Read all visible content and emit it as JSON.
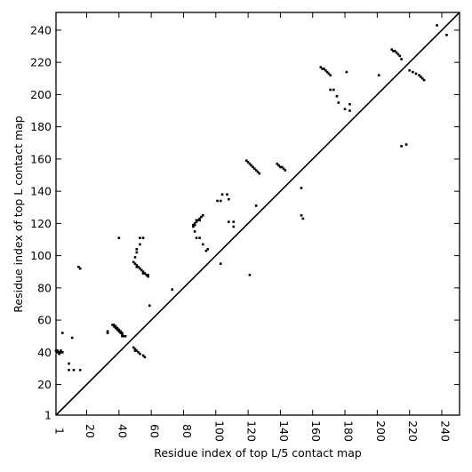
{
  "chart_data": {
    "type": "scatter",
    "title": "",
    "xlabel": "Residue index of top L/5 contact map",
    "ylabel": "Residue index of top L contact map",
    "xlim": [
      1,
      251
    ],
    "ylim": [
      1,
      251
    ],
    "x_ticks": [
      "1",
      "20",
      "40",
      "60",
      "80",
      "100",
      "120",
      "140",
      "160",
      "180",
      "200",
      "220",
      "240"
    ],
    "y_ticks": [
      "1",
      "20",
      "40",
      "60",
      "80",
      "100",
      "120",
      "140",
      "160",
      "180",
      "200",
      "220",
      "240"
    ],
    "grid": false,
    "diagonal": true,
    "marker": "square",
    "marker_color": "#000000",
    "series": [
      {
        "points": [
          [
            1,
            41
          ],
          [
            2,
            41
          ],
          [
            2,
            40
          ],
          [
            3,
            40
          ],
          [
            3,
            39
          ],
          [
            4,
            40
          ],
          [
            4,
            41
          ],
          [
            5,
            40
          ],
          [
            5,
            52
          ],
          [
            9,
            29
          ],
          [
            9,
            33
          ],
          [
            11,
            49
          ],
          [
            12,
            29
          ],
          [
            15,
            93
          ],
          [
            16,
            92
          ],
          [
            16,
            29
          ],
          [
            33,
            52
          ],
          [
            33,
            53
          ],
          [
            36,
            57
          ],
          [
            37,
            57
          ],
          [
            37,
            56
          ],
          [
            38,
            56
          ],
          [
            38,
            55
          ],
          [
            39,
            55
          ],
          [
            39,
            54
          ],
          [
            40,
            54
          ],
          [
            40,
            53
          ],
          [
            41,
            53
          ],
          [
            41,
            52
          ],
          [
            42,
            52
          ],
          [
            42,
            51
          ],
          [
            42,
            50
          ],
          [
            43,
            50
          ],
          [
            44,
            50
          ],
          [
            40,
            111
          ],
          [
            49,
            43
          ],
          [
            50,
            42
          ],
          [
            50,
            41
          ],
          [
            51,
            41
          ],
          [
            52,
            40
          ],
          [
            53,
            39
          ],
          [
            55,
            38
          ],
          [
            56,
            37
          ],
          [
            49,
            96
          ],
          [
            50,
            95
          ],
          [
            51,
            94
          ],
          [
            51,
            93
          ],
          [
            52,
            93
          ],
          [
            53,
            92
          ],
          [
            54,
            91
          ],
          [
            55,
            90
          ],
          [
            55,
            89
          ],
          [
            56,
            89
          ],
          [
            57,
            88
          ],
          [
            58,
            88
          ],
          [
            58,
            87
          ],
          [
            50,
            99
          ],
          [
            51,
            102
          ],
          [
            51,
            104
          ],
          [
            53,
            111
          ],
          [
            55,
            111
          ],
          [
            53,
            107
          ],
          [
            59,
            69
          ],
          [
            73,
            79
          ],
          [
            86,
            118
          ],
          [
            86,
            119
          ],
          [
            87,
            119
          ],
          [
            87,
            120
          ],
          [
            88,
            121
          ],
          [
            88,
            122
          ],
          [
            89,
            122
          ],
          [
            90,
            122
          ],
          [
            90,
            123
          ],
          [
            91,
            124
          ],
          [
            92,
            125
          ],
          [
            87,
            115
          ],
          [
            88,
            111
          ],
          [
            90,
            111
          ],
          [
            92,
            107
          ],
          [
            94,
            103
          ],
          [
            95,
            104
          ],
          [
            101,
            134
          ],
          [
            103,
            134
          ],
          [
            104,
            138
          ],
          [
            103,
            95
          ],
          [
            107,
            138
          ],
          [
            108,
            135
          ],
          [
            108,
            121
          ],
          [
            111,
            121
          ],
          [
            111,
            118
          ],
          [
            119,
            159
          ],
          [
            120,
            158
          ],
          [
            121,
            157
          ],
          [
            122,
            156
          ],
          [
            123,
            155
          ],
          [
            124,
            154
          ],
          [
            125,
            153
          ],
          [
            126,
            152
          ],
          [
            127,
            151
          ],
          [
            121,
            88
          ],
          [
            125,
            131
          ],
          [
            138,
            157
          ],
          [
            139,
            156
          ],
          [
            140,
            155
          ],
          [
            141,
            155
          ],
          [
            142,
            154
          ],
          [
            143,
            153
          ],
          [
            153,
            142
          ],
          [
            153,
            125
          ],
          [
            154,
            123
          ],
          [
            165,
            217
          ],
          [
            166,
            216
          ],
          [
            167,
            216
          ],
          [
            168,
            215
          ],
          [
            169,
            214
          ],
          [
            170,
            213
          ],
          [
            171,
            212
          ],
          [
            171,
            203
          ],
          [
            173,
            203
          ],
          [
            175,
            199
          ],
          [
            176,
            195
          ],
          [
            180,
            191
          ],
          [
            181,
            214
          ],
          [
            183,
            190
          ],
          [
            183,
            194
          ],
          [
            201,
            212
          ],
          [
            209,
            228
          ],
          [
            210,
            227
          ],
          [
            211,
            227
          ],
          [
            212,
            226
          ],
          [
            213,
            225
          ],
          [
            214,
            224
          ],
          [
            215,
            222
          ],
          [
            215,
            168
          ],
          [
            218,
            169
          ],
          [
            220,
            215
          ],
          [
            222,
            214
          ],
          [
            224,
            213
          ],
          [
            226,
            212
          ],
          [
            227,
            211
          ],
          [
            228,
            210
          ],
          [
            229,
            209
          ],
          [
            237,
            243
          ],
          [
            243,
            237
          ]
        ]
      }
    ]
  }
}
